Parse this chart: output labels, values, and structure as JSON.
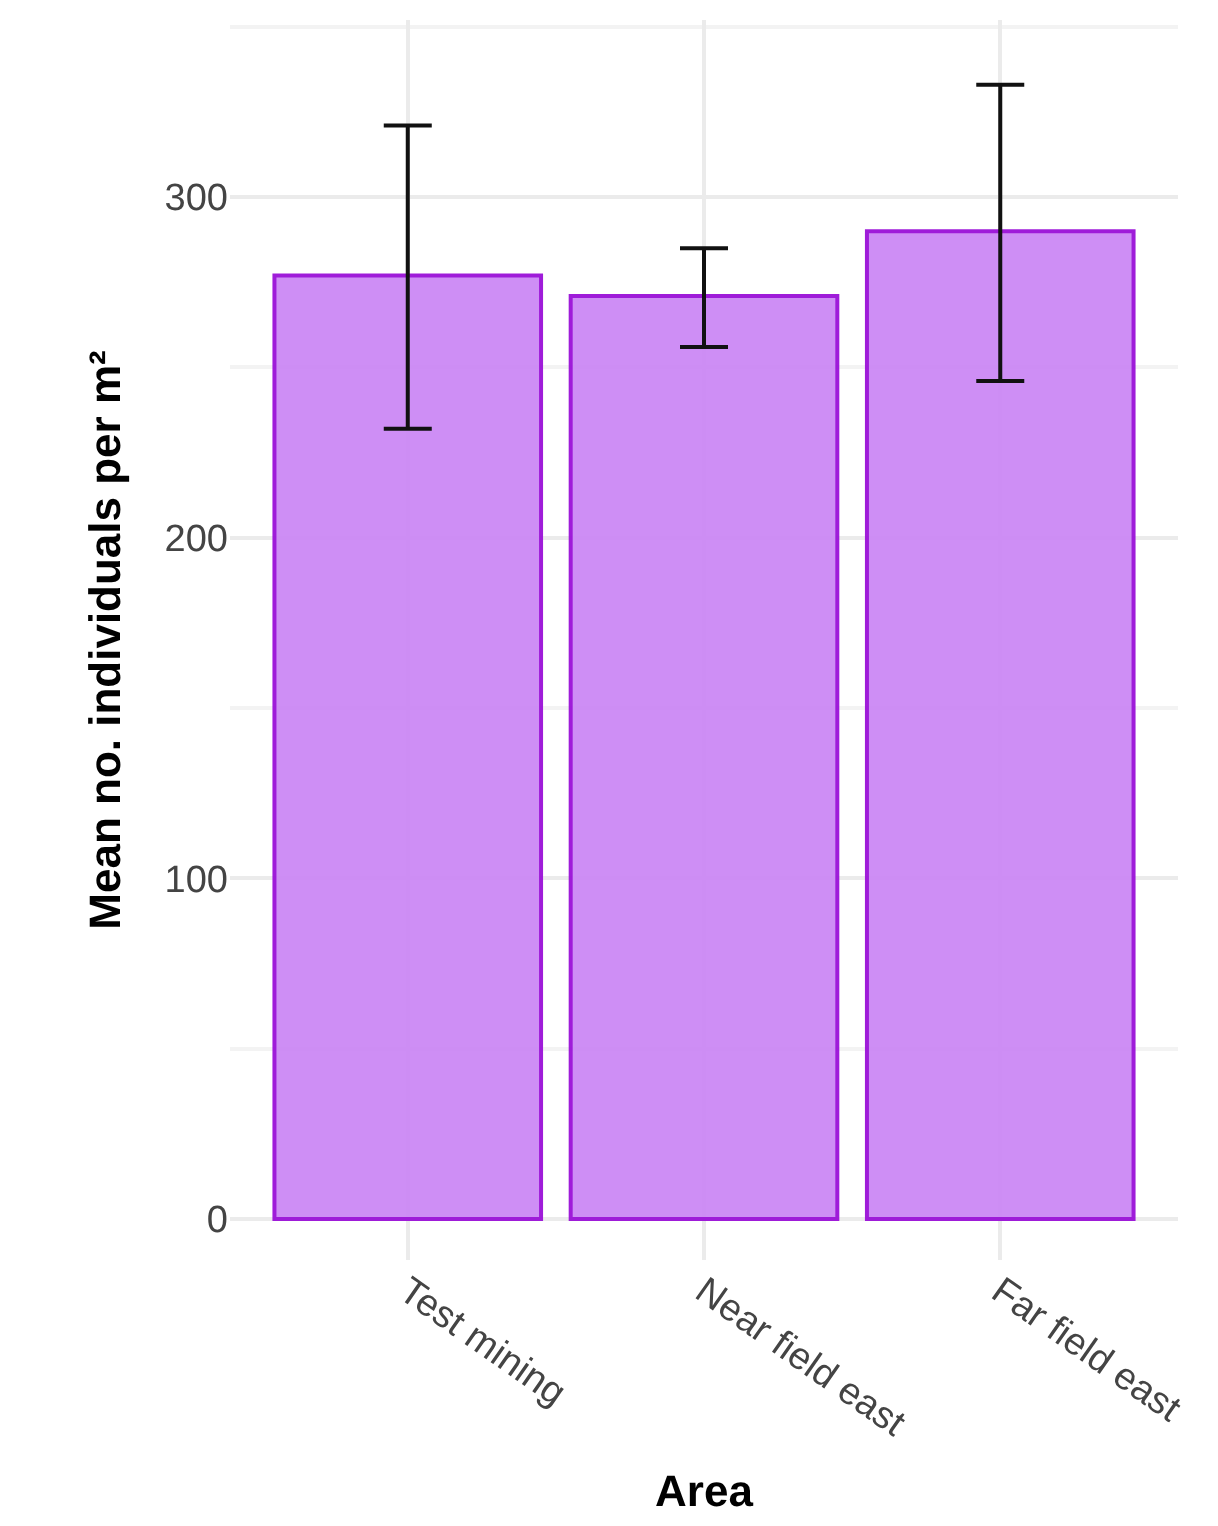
{
  "chart_data": {
    "type": "bar",
    "xlabel": "Area",
    "ylabel": "Mean no. individuals per m²",
    "categories": [
      "Test mining",
      "Near field east",
      "Far field east"
    ],
    "values": [
      277,
      271,
      290
    ],
    "color": "#cc88f5",
    "errors": [
      [
        232,
        321
      ],
      [
        256,
        285
      ],
      [
        246,
        333
      ]
    ],
    "ylim": [
      -12,
      352
    ],
    "yticks": [
      0,
      100,
      200,
      300
    ],
    "grid": true
  }
}
